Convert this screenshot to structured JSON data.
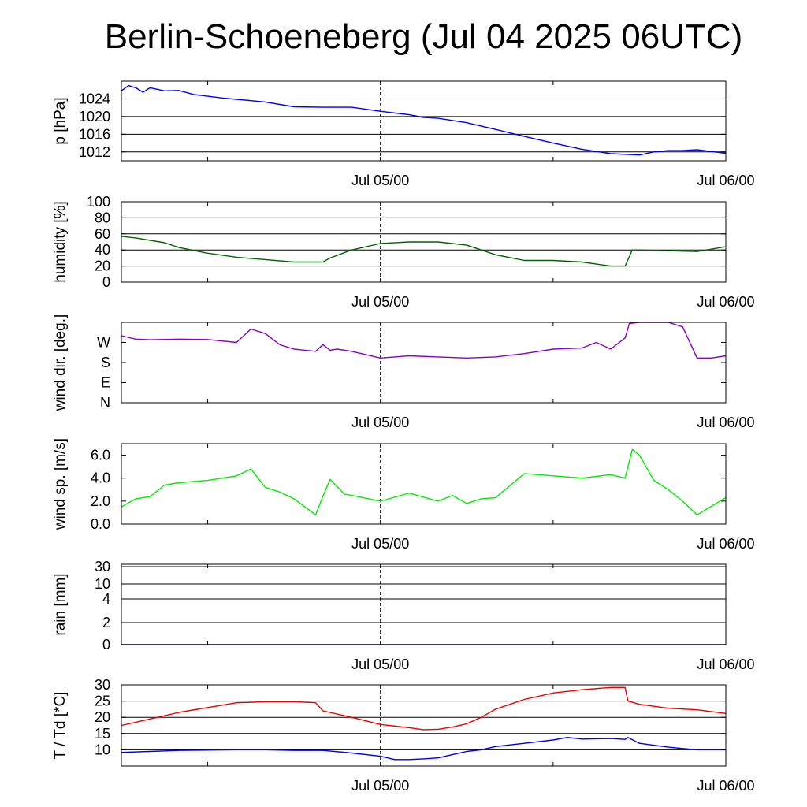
{
  "title": "Berlin-Schoeneberg (Jul 04 2025 06UTC)",
  "x_axis": {
    "start": "2025-07-04 06:00 UTC",
    "end": "2025-07-06 00:00 UTC",
    "tick_labels": [
      "Jul 05/00",
      "Jul 06/00"
    ],
    "marker": "Jul 05/00"
  },
  "chart_data": [
    {
      "type": "line",
      "ylabel": "p [hPa]",
      "ylim": [
        1010,
        1028
      ],
      "yticks": [
        1012,
        1016,
        1020,
        1024
      ],
      "yticklabels": [
        "1012",
        "1016",
        "1020",
        "1024"
      ],
      "grid": true,
      "series": [
        {
          "color": "#0000ee",
          "x": [
            6,
            6.5,
            7,
            7.5,
            8,
            9,
            10,
            11,
            12,
            13,
            14,
            16,
            18,
            20,
            22,
            24,
            26,
            27,
            28,
            30,
            32,
            34,
            36,
            38,
            40,
            42,
            43,
            44,
            45,
            46,
            48
          ],
          "y": [
            1025.8,
            1027,
            1026.5,
            1025.5,
            1026.5,
            1025.8,
            1025.9,
            1025.0,
            1024.6,
            1024.2,
            1023.9,
            1023.3,
            1022.2,
            1022.1,
            1022.1,
            1021.2,
            1020.4,
            1019.8,
            1019.6,
            1018.6,
            1017.1,
            1015.5,
            1014.0,
            1012.6,
            1011.6,
            1011.3,
            1012.0,
            1012.3,
            1012.3,
            1012.5,
            1011.7
          ]
        }
      ]
    },
    {
      "type": "line",
      "ylabel": "humidity [%]",
      "ylim": [
        0,
        100
      ],
      "yticks": [
        0,
        20,
        40,
        60,
        80,
        100
      ],
      "yticklabels": [
        "0",
        "20",
        "40",
        "60",
        "80",
        "100"
      ],
      "grid": true,
      "series": [
        {
          "color": "#006400",
          "x": [
            6,
            7,
            9,
            10,
            12,
            14,
            16,
            18,
            20,
            20.5,
            22,
            24,
            26,
            28,
            30,
            32,
            34,
            36,
            38,
            40,
            41,
            41.5,
            42,
            44,
            46,
            48
          ],
          "y": [
            57,
            55,
            49,
            43,
            36,
            31,
            28,
            25,
            25,
            30,
            40,
            48,
            50,
            50,
            46,
            34,
            27,
            27,
            25,
            20,
            20,
            40,
            40,
            39,
            38,
            44
          ]
        }
      ]
    },
    {
      "type": "line",
      "ylabel": "wind dir. [deg.]",
      "ylim": [
        0,
        360
      ],
      "yticks": [
        0,
        90,
        180,
        270
      ],
      "yticklabels": [
        "N",
        "E",
        "S",
        "W"
      ],
      "grid": false,
      "series": [
        {
          "color": "#8b00c8",
          "x": [
            6,
            7,
            8,
            10,
            12,
            14,
            15,
            16,
            17,
            18,
            19.5,
            20,
            20.5,
            21,
            22,
            24,
            26,
            28,
            30,
            32,
            34,
            36,
            38,
            39,
            40,
            41,
            41.3,
            42,
            44,
            45,
            46,
            47,
            48
          ],
          "y": [
            300,
            285,
            282,
            285,
            283,
            270,
            330,
            310,
            260,
            240,
            230,
            260,
            235,
            240,
            230,
            200,
            210,
            205,
            200,
            205,
            220,
            240,
            245,
            270,
            240,
            290,
            355,
            360,
            360,
            340,
            200,
            200,
            210
          ]
        }
      ]
    },
    {
      "type": "line",
      "ylabel": "wind sp. [m/s]",
      "ylim": [
        0,
        7
      ],
      "yticks": [
        0,
        2,
        4,
        6
      ],
      "yticklabels": [
        "0.0",
        "2.0",
        "4.0",
        "6.0"
      ],
      "grid": false,
      "series": [
        {
          "color": "#00ee00",
          "x": [
            6,
            7,
            8,
            9,
            10,
            12,
            14,
            15,
            16,
            17,
            18,
            19.5,
            20,
            20.5,
            21.5,
            22,
            24,
            26,
            28,
            29,
            30,
            31,
            32,
            34,
            36,
            38,
            40,
            41,
            41.5,
            42,
            43,
            44,
            45,
            46,
            48
          ],
          "y": [
            1.5,
            2.2,
            2.4,
            3.4,
            3.6,
            3.8,
            4.2,
            4.8,
            3.2,
            2.8,
            2.2,
            0.8,
            2.4,
            3.9,
            2.6,
            2.5,
            2.0,
            2.7,
            2.0,
            2.5,
            1.8,
            2.2,
            2.3,
            4.4,
            4.2,
            4.0,
            4.3,
            4.0,
            6.5,
            6.0,
            3.8,
            3.0,
            2.0,
            0.8,
            2.3
          ]
        }
      ]
    },
    {
      "type": "line",
      "ylabel": "rain [mm]",
      "yticks": [
        0,
        2,
        4,
        10,
        30
      ],
      "yticklabels": [
        "0",
        "2",
        "4",
        "10",
        "30"
      ],
      "grid": true,
      "series": [
        {
          "color": "#00008b",
          "x": [
            6,
            48
          ],
          "y": [
            0,
            0
          ]
        }
      ]
    },
    {
      "type": "line",
      "ylabel": "T / Td [*C]",
      "ylim": [
        5,
        30
      ],
      "yticks": [
        10,
        15,
        20,
        25,
        30
      ],
      "yticklabels": [
        "10",
        "15",
        "20",
        "25",
        "30"
      ],
      "grid": true,
      "series": [
        {
          "color": "#ee0000",
          "x": [
            6,
            7,
            8,
            10,
            12,
            14,
            15,
            16,
            17,
            18,
            19.5,
            20,
            22,
            24,
            26,
            27,
            28,
            29,
            30,
            31,
            32,
            34,
            36,
            38,
            40,
            41,
            41.2,
            42,
            44,
            46,
            48
          ],
          "y": [
            17.5,
            18.5,
            19.5,
            21.5,
            23.0,
            24.5,
            24.6,
            24.8,
            24.8,
            24.8,
            24.5,
            22.0,
            20.0,
            17.8,
            16.8,
            16.2,
            16.3,
            17.0,
            18.0,
            20.0,
            22.5,
            25.5,
            27.5,
            28.5,
            29.2,
            29.2,
            25.0,
            24.0,
            22.8,
            22.3,
            21.2
          ]
        },
        {
          "color": "#0000ee",
          "x": [
            6,
            8,
            10,
            12,
            14,
            16,
            18,
            20,
            22,
            24,
            25,
            26,
            27,
            28,
            29,
            30,
            31,
            32,
            34,
            36,
            37,
            38,
            40,
            41,
            41.2,
            42,
            44,
            46,
            48
          ],
          "y": [
            9.2,
            9.5,
            9.8,
            9.9,
            10.0,
            10.0,
            9.8,
            9.8,
            9.0,
            8.0,
            7.0,
            7.0,
            7.2,
            7.5,
            8.5,
            9.5,
            10.0,
            11.0,
            12.0,
            13.0,
            13.8,
            13.3,
            13.5,
            13.2,
            13.8,
            12.0,
            10.8,
            10.0,
            10.0
          ]
        }
      ]
    }
  ]
}
